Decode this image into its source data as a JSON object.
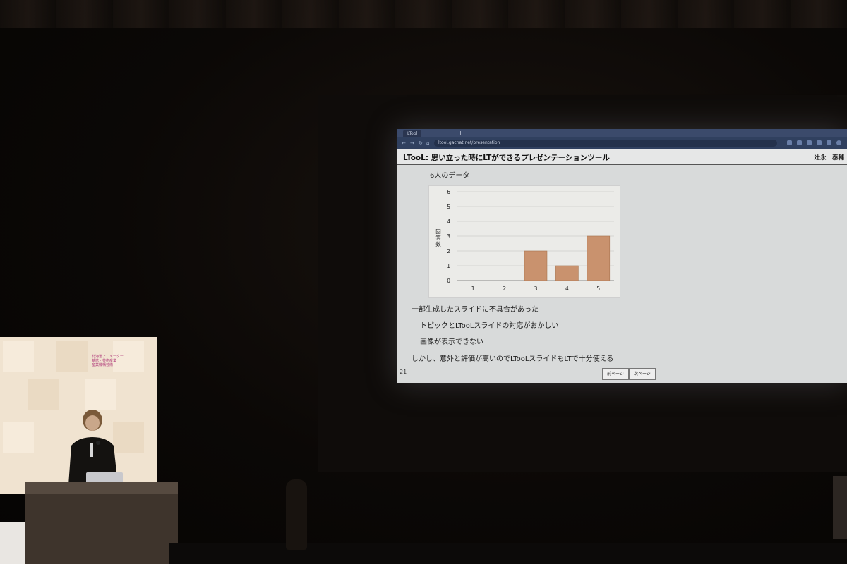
{
  "browser": {
    "tab_title": "LTool",
    "tab_plus": "+",
    "url": "ltool.gachat.net/presentation"
  },
  "slide": {
    "title": "LTooL: 思い立った時にLTができるプレゼンテーションツール",
    "author": "辻永　泰輔",
    "subtitle": "6人のデータ",
    "bullets": [
      "一部生成したスライドに不具合があった",
      "トピックとLTooLスライドの対応がおかしい",
      "画像が表示できない",
      "しかし、意外と評価が高いのでLTooLスライドもLTで十分使える"
    ],
    "page_number": "21",
    "prev_label": "前ページ",
    "next_label": "次ページ"
  },
  "chart_data": {
    "type": "bar",
    "categories": [
      "1",
      "2",
      "3",
      "4",
      "5"
    ],
    "values": [
      0,
      0,
      2,
      1,
      3
    ],
    "ylabel": "回答数",
    "ylim": [
      0,
      6
    ],
    "yticks": [
      "0",
      "1",
      "2",
      "3",
      "4",
      "5",
      "6"
    ],
    "grid": true,
    "bar_color": "#c9926e"
  },
  "booth": {
    "text_lines": [
      "北海道アニメーター",
      "雑誌・芸術産業",
      "産業機構芸術"
    ]
  }
}
